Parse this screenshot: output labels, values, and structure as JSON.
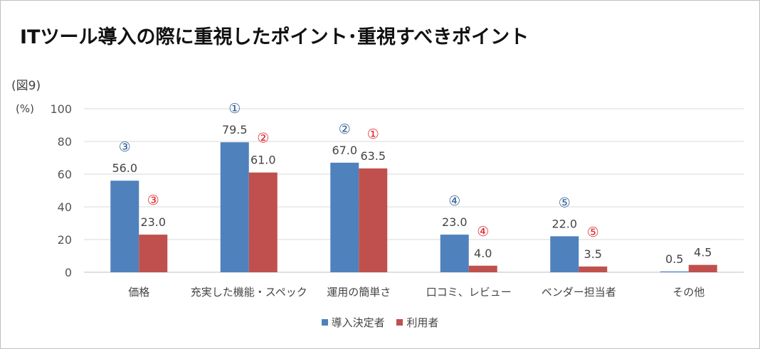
{
  "title": "ITツール導入の際に重視したポイント･重視すべきポイント",
  "figure_label": "(図9)",
  "unit_label": "(%)",
  "colors": {
    "series1": "#4f81bd",
    "series2": "#c0504d",
    "rank1": "#2e5f96",
    "rank2": "#e0282e",
    "grid": "#d9d9d9"
  },
  "chart_data": {
    "type": "bar",
    "categories": [
      "価格",
      "充実した機能・スペック",
      "運用の簡単さ",
      "口コミ、レビュー",
      "ベンダー担当者",
      "その他"
    ],
    "series": [
      {
        "name": "導入決定者",
        "values": [
          56.0,
          79.5,
          67.0,
          23.0,
          22.0,
          0.5
        ],
        "labels": [
          "56.0",
          "79.5",
          "67.0",
          "23.0",
          "22.0",
          "0.5"
        ],
        "ranks": [
          "③",
          "①",
          "②",
          "④",
          "⑤",
          ""
        ]
      },
      {
        "name": "利用者",
        "values": [
          23.0,
          61.0,
          63.5,
          4.0,
          3.5,
          4.5
        ],
        "labels": [
          "23.0",
          "61.0",
          "63.5",
          "4.0",
          "3.5",
          "4.5"
        ],
        "ranks": [
          "③",
          "②",
          "①",
          "④",
          "⑤",
          ""
        ]
      }
    ],
    "ylim": [
      0,
      100
    ],
    "yticks": [
      "0",
      "20",
      "40",
      "60",
      "80",
      "100"
    ],
    "grid": true,
    "legend": "bottom"
  }
}
